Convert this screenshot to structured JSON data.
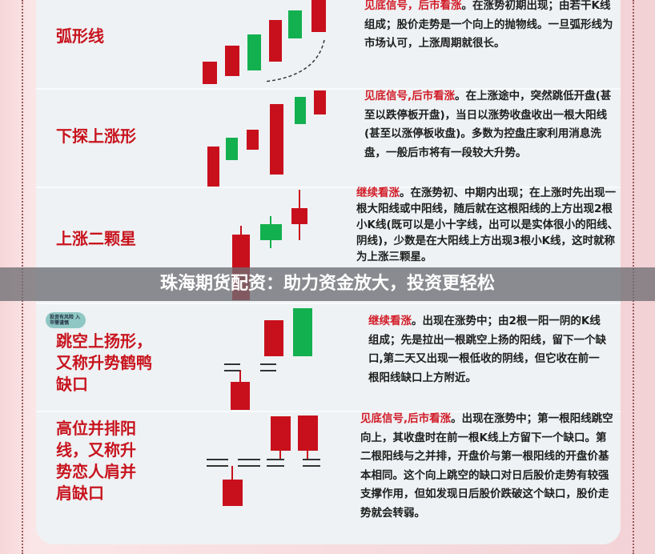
{
  "rows": [
    {
      "title": "弧形线",
      "highlight": "见底信号，后市看涨",
      "text": "。在涨势初期出现；由若干K线组成；股价走势是一个向上的抛物线。一旦弧形线为市场认可，上涨周期就很长。"
    },
    {
      "title": "下探上涨形",
      "highlight": "见底信号,后市看涨",
      "text": "。在上涨途中，突然跳低开盘(甚至以跌停板开盘)，当日以涨势收盘收出一根大阳线(甚至以涨停板收盘)。多数为控盘庄家利用消息洗盘，一般后市将有一段较大升势。"
    },
    {
      "title": "上涨二颗星",
      "highlight": "继续看涨",
      "text": "。在涨势初、中期内出现；在上涨时先出现一根大阳线或中阳线，随后就在这根阳线的上方出现2根小K线(既可以是小十字线，出可以是实体很小的阳线、阴线)，少数是在大阳线上方出现3根小K线，这时就称为上涨三颗星。"
    },
    {
      "title": "跳空上扬形，又称升势鹤鸭缺口",
      "highlight": "继续看涨",
      "text": "。出现在涨势中；由2根一阳一阴的K线组成；先是拉出一根跳空上扬的阳线，留下一个缺口,第二天又出现一根低收的阴线，但它收在前一根阳线缺口上方附近。",
      "badge": "投资有风险 入市需谨慎"
    },
    {
      "title": "高位并排阳线，又称升势恋人肩并肩缺口",
      "highlight": "见底信号,后市看涨",
      "text": "。出现在涨势中；第一根阳线跳空向上，其收盘时在前一根K线上方留下一个缺口。第二根阳线与之并排，开盘价与第一根阳线的开盘价基本相同。这个向上跳空的缺口对日后股价走势有较强支撑作用，但如发现日后股价跌破这个缺口，股价走势就会转弱。"
    }
  ],
  "banner": "珠海期货配资：助力资金放大，投资更轻松",
  "colors": {
    "up": "#c8101c",
    "down": "#13b04f",
    "accent": "#d21c28"
  }
}
